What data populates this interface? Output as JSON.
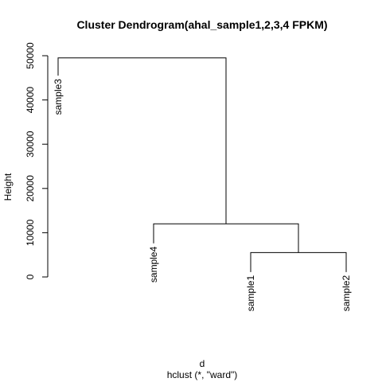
{
  "chart_data": {
    "type": "dendrogram",
    "title": "Cluster Dendrogram(ahal_sample1,2,3,4 FPKM)",
    "xlabel": "d",
    "sub": "hclust (*, \"ward\")",
    "ylabel": "Height",
    "ylim": [
      0,
      50000
    ],
    "yticks": [
      0,
      10000,
      20000,
      30000,
      40000,
      50000
    ],
    "ytick_labels": [
      "0",
      "10000",
      "20000",
      "30000",
      "40000",
      "50000"
    ],
    "leaves": [
      {
        "label": "sample3",
        "leaf_height": 45500
      },
      {
        "label": "sample4",
        "leaf_height": 7600
      },
      {
        "label": "sample1",
        "leaf_height": 1100
      },
      {
        "label": "sample2",
        "leaf_height": 1100
      }
    ],
    "merges": [
      {
        "left": "sample1",
        "right": "sample2",
        "height": 5500
      },
      {
        "left": "sample4",
        "right": "sample1+sample2",
        "height": 12000
      },
      {
        "left": "sample3",
        "right": "sample4+sample1+sample2",
        "height": 49500
      }
    ],
    "colors": {
      "line": "#000000",
      "text": "#000000",
      "background": "#ffffff"
    }
  }
}
